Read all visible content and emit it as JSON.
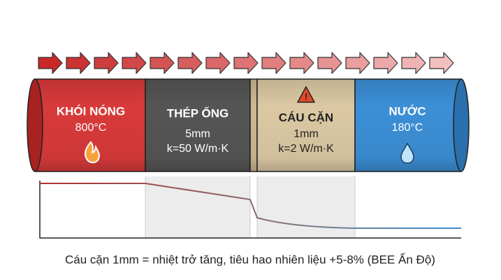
{
  "sections": [
    {
      "title": "KHÓI NÓNG",
      "lines": [
        "800°C"
      ]
    },
    {
      "title": "THÉP ỐNG",
      "lines": [
        "5mm",
        "k=50 W/m·K"
      ]
    },
    {
      "title": "CÁU CẶN",
      "lines": [
        "1mm",
        "k=2 W/m·K"
      ]
    },
    {
      "title": "NƯỚC",
      "lines": [
        "180°C"
      ]
    }
  ],
  "caption": "Cáu cặn 1mm = nhiệt trở tăng, tiêu hao nhiên liệu +5-8% (BEE Ấn Độ)"
}
